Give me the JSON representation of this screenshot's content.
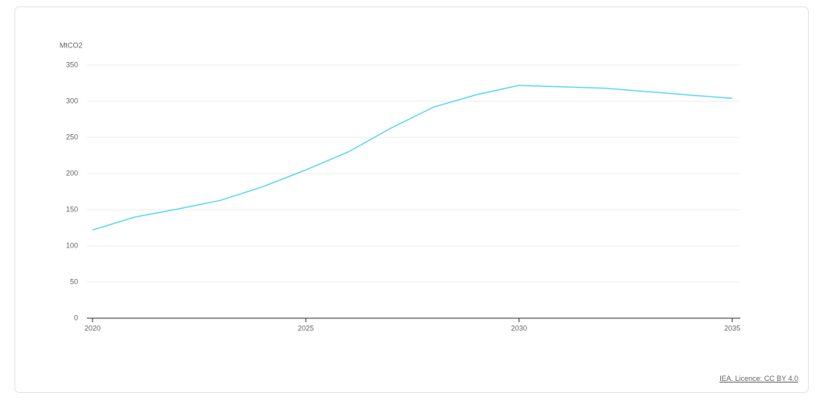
{
  "chart_data": {
    "type": "line",
    "y_label": "MtCO2",
    "x": [
      2020,
      2021,
      2022,
      2023,
      2024,
      2025,
      2026,
      2027,
      2028,
      2029,
      2030,
      2032,
      2035
    ],
    "series": [
      {
        "color": "#5fd8f2",
        "values": [
          122,
          140,
          151,
          163,
          182,
          205,
          230,
          263,
          292,
          309,
          322,
          318,
          304
        ]
      }
    ],
    "xlim": [
      2020,
      2035
    ],
    "xticks": [
      2020,
      2025,
      2030,
      2035
    ],
    "ylim": [
      0,
      350
    ],
    "yticks": [
      0,
      50,
      100,
      150,
      200,
      250,
      300,
      350
    ],
    "grid": true
  },
  "footer": {
    "credit": "IEA. Licence: CC BY 4.0"
  }
}
